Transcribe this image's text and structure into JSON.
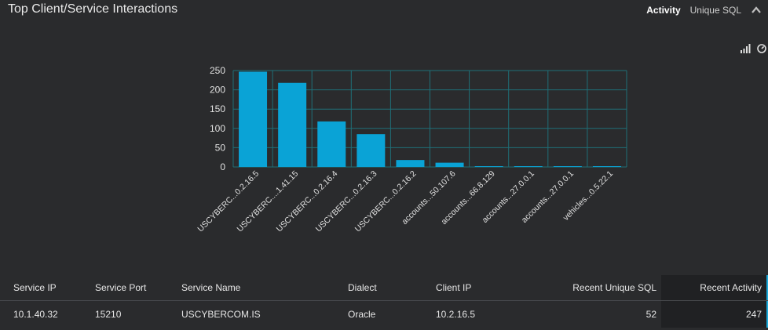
{
  "widget": {
    "title": "Top Client/Service Interactions",
    "tabs": [
      {
        "label": "Activity",
        "active": true
      },
      {
        "label": "Unique SQL",
        "active": false
      }
    ]
  },
  "toolbar": {
    "icons": [
      "bar-chart-icon",
      "gauge-icon"
    ]
  },
  "colors": {
    "bar": "#0aa3d6",
    "grid": "#1f6f78",
    "accent": "#19a8d8"
  },
  "chart_data": {
    "type": "bar",
    "categories": [
      "USCYBERC...0.2.16.5",
      "USCYBERC....1.41.15",
      "USCYBERC...0.2.16.4",
      "USCYBERC...0.2.16.3",
      "USCYBERC...0.2.16.2",
      "accounts...50.107.6",
      "accounts...66.8.129",
      "accounts...27.0.0.1",
      "accounts...27.0.0.1",
      "vehicles...0.5.22.1"
    ],
    "values": [
      247,
      218,
      118,
      85,
      18,
      11,
      2,
      2,
      1,
      1
    ],
    "ylim": [
      0,
      250
    ],
    "yticks": [
      0,
      50,
      100,
      150,
      200,
      250
    ],
    "grid": true
  },
  "table": {
    "columns": [
      "Service IP",
      "Service Port",
      "Service Name",
      "Dialect",
      "Client IP",
      "Recent Unique SQL",
      "Recent Activity"
    ],
    "rows": [
      [
        "10.1.40.32",
        "15210",
        "USCYBERCOM.IS",
        "Oracle",
        "10.2.16.5",
        "52",
        "247"
      ]
    ]
  }
}
